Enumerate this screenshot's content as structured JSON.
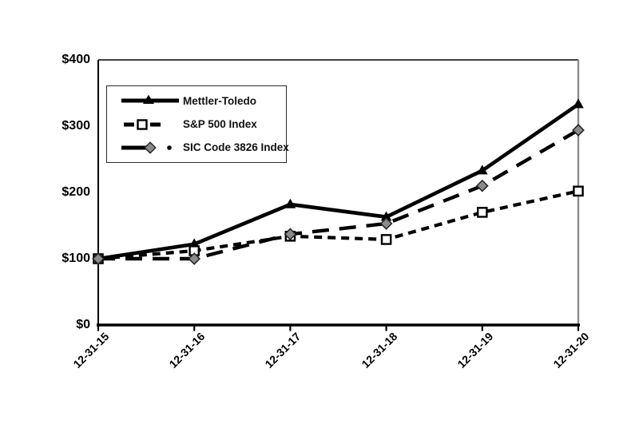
{
  "chart_data": {
    "type": "line",
    "title": "",
    "categories": [
      "12-31-15",
      "12-31-16",
      "12-31-17",
      "12-31-18",
      "12-31-19",
      "12-31-20"
    ],
    "series": [
      {
        "name": "Mettler-Toledo",
        "values": [
          100,
          122,
          182,
          163,
          233,
          333
        ],
        "line_style": "solid",
        "marker": "filled-triangle",
        "line_color": "#000000",
        "marker_fill": "#000000"
      },
      {
        "name": "S&P 500 Index",
        "values": [
          100,
          112,
          134,
          129,
          170,
          202
        ],
        "line_style": "short-dash",
        "marker": "open-square",
        "line_color": "#000000",
        "marker_fill": "#ffffff"
      },
      {
        "name": "SIC Code 3826 Index",
        "values": [
          100,
          100,
          137,
          153,
          210,
          294
        ],
        "line_style": "long-dash",
        "marker": "filled-diamond",
        "line_color": "#000000",
        "marker_fill": "#8a8a8a"
      }
    ],
    "xlabel": "",
    "ylabel": "",
    "ylim": [
      0,
      400
    ],
    "y_ticks": [
      400,
      300,
      200,
      100,
      0
    ],
    "y_tick_labels": [
      "$400",
      "$300",
      "$200",
      "$100",
      "$0"
    ],
    "grid": false,
    "legend_position": "top-left",
    "axis_color": "#000000",
    "right_border_color": "#8c8c8c",
    "background": "#ffffff"
  }
}
